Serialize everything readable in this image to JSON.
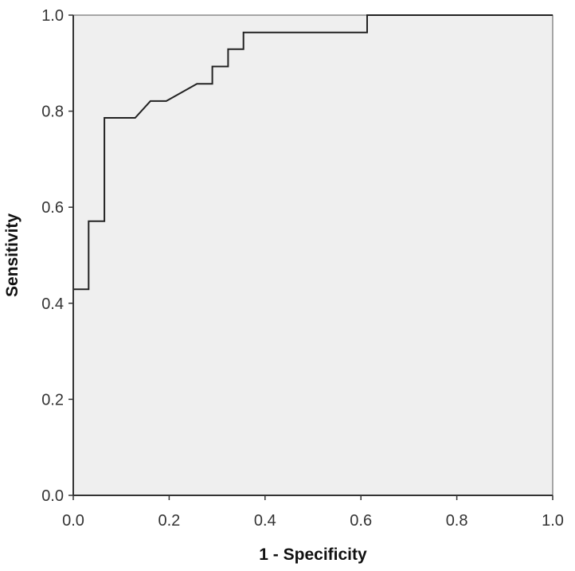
{
  "chart_data": {
    "type": "line",
    "title": "",
    "xlabel": "1 - Specificity",
    "ylabel": "Sensitivity",
    "xlim": [
      0.0,
      1.0
    ],
    "ylim": [
      0.0,
      1.0
    ],
    "x_ticks": [
      "0.0",
      "0.2",
      "0.4",
      "0.6",
      "0.8",
      "1.0"
    ],
    "y_ticks": [
      "0.0",
      "0.2",
      "0.4",
      "0.6",
      "0.8",
      "1.0"
    ],
    "grid": false,
    "legend": "none",
    "plot_background": "#efefef",
    "line_color": "#222222",
    "series": [
      {
        "points": [
          [
            0.0,
            0.0
          ],
          [
            0.0,
            0.429
          ],
          [
            0.032,
            0.429
          ],
          [
            0.032,
            0.571
          ],
          [
            0.065,
            0.571
          ],
          [
            0.065,
            0.786
          ],
          [
            0.129,
            0.786
          ],
          [
            0.161,
            0.821
          ],
          [
            0.194,
            0.821
          ],
          [
            0.258,
            0.857
          ],
          [
            0.29,
            0.857
          ],
          [
            0.29,
            0.893
          ],
          [
            0.323,
            0.893
          ],
          [
            0.323,
            0.929
          ],
          [
            0.355,
            0.929
          ],
          [
            0.355,
            0.964
          ],
          [
            0.613,
            0.964
          ],
          [
            0.613,
            1.0
          ],
          [
            1.0,
            1.0
          ]
        ]
      }
    ]
  }
}
